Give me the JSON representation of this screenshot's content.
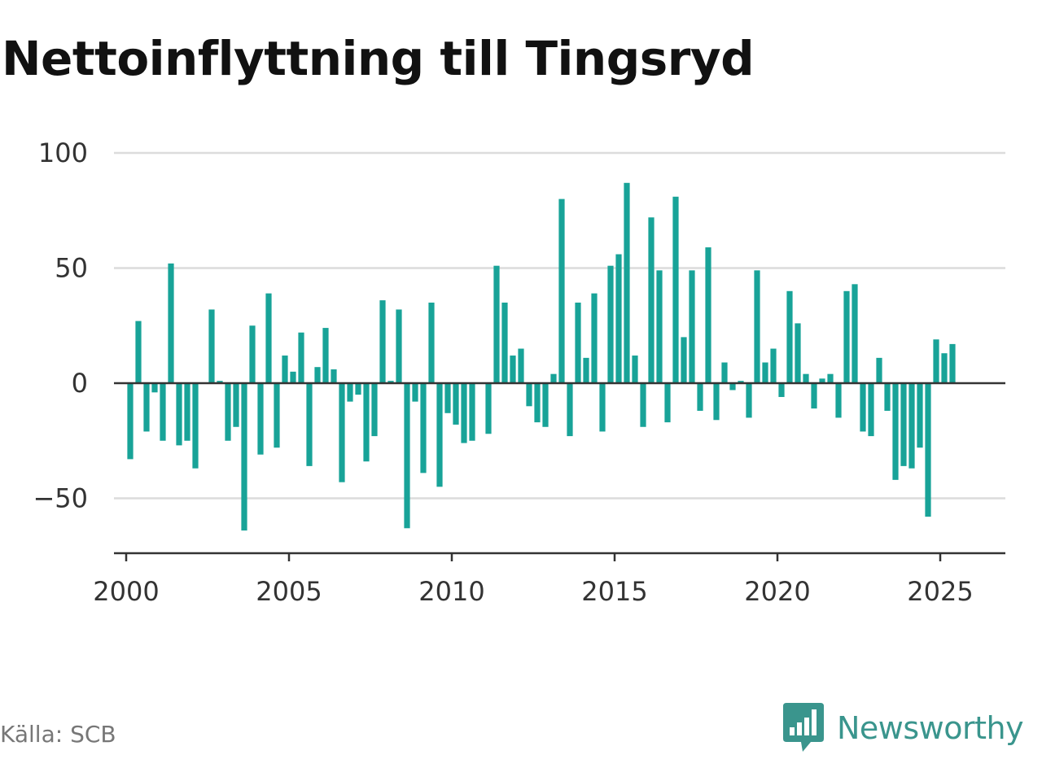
{
  "header": {
    "title": "Nettoinflyttning till Tingsryd"
  },
  "footer": {
    "source": "Källa: SCB",
    "brand": "Newsworthy"
  },
  "colors": {
    "bar": "#18a398",
    "grid": "#dcdcdc",
    "zero_line": "#333333",
    "brand": "#3a958d"
  },
  "chart_data": {
    "type": "bar",
    "title": "Nettoinflyttning till Tingsryd",
    "xlabel": "",
    "ylabel": "",
    "frequency": "quarterly",
    "x_start": "2000 Q1",
    "xlim": [
      1999.625,
      2027.0
    ],
    "ylim": [
      -75,
      100
    ],
    "y_ticks": [
      100,
      50,
      0,
      -50
    ],
    "y_tick_labels": [
      "100",
      "50",
      "0",
      "−50"
    ],
    "x_ticks": [
      2000,
      2005,
      2010,
      2015,
      2020,
      2025
    ],
    "x_tick_labels": [
      "2000",
      "2005",
      "2010",
      "2015",
      "2020",
      "2025"
    ],
    "grid": "horizontal",
    "values": [
      -33,
      27,
      -21,
      -4,
      -25,
      52,
      -27,
      -25,
      -37,
      0,
      32,
      1,
      -25,
      -19,
      -64,
      25,
      -31,
      39,
      -28,
      12,
      5,
      22,
      -36,
      7,
      24,
      6,
      -43,
      -8,
      -5,
      -34,
      -23,
      36,
      1,
      32,
      -63,
      -8,
      -39,
      35,
      -45,
      -13,
      -18,
      -26,
      -25,
      0,
      -22,
      51,
      35,
      12,
      15,
      -10,
      -17,
      -19,
      4,
      80,
      -23,
      35,
      11,
      39,
      -21,
      51,
      56,
      87,
      12,
      -19,
      72,
      49,
      -17,
      81,
      20,
      49,
      -12,
      59,
      -16,
      9,
      -3,
      1,
      -15,
      49,
      9,
      15,
      -6,
      40,
      26,
      4,
      -11,
      2,
      4,
      -15,
      40,
      43,
      -21,
      -23,
      11,
      -12,
      -42,
      -36,
      -37,
      -28,
      -58,
      19,
      13,
      17
    ]
  }
}
